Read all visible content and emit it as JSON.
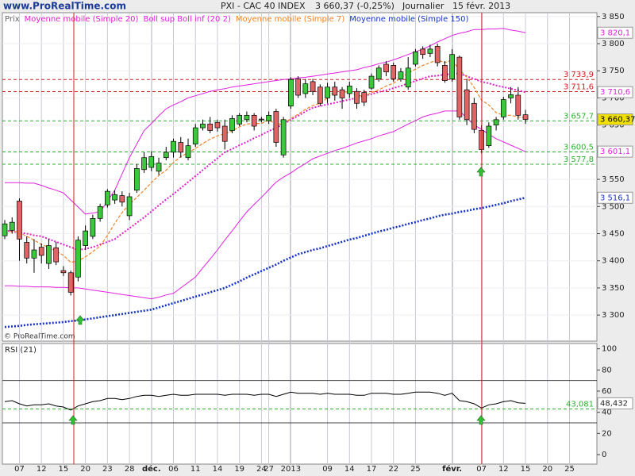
{
  "site": "www.ProRealTime.com",
  "watermark": "© ProRealTime.com",
  "chart_data": [
    {
      "type": "candlestick",
      "title": "PXI - CAC 40 INDEX",
      "last_quote": "3 660,37 (-0,25%)",
      "period": "Journalier",
      "date": "15 févr. 2013",
      "categories": [
        null,
        null,
        "07",
        null,
        null,
        "12",
        null,
        null,
        "15",
        null,
        null,
        "20",
        null,
        null,
        "23",
        null,
        null,
        "28",
        null,
        null,
        "déc.",
        null,
        null,
        "06",
        null,
        null,
        "11",
        null,
        null,
        "14",
        null,
        null,
        "19",
        null,
        null,
        "24",
        "27",
        null,
        null,
        "2013",
        null,
        null,
        null,
        null,
        "09",
        null,
        null,
        "14",
        null,
        null,
        "17",
        null,
        null,
        "22",
        null,
        null,
        "25",
        null,
        null,
        null,
        null,
        "févr.",
        null,
        null,
        null,
        "07",
        null,
        null,
        "12",
        null,
        null,
        "15",
        null,
        null,
        "20",
        null,
        null,
        "25"
      ],
      "series": [
        {
          "name": "Prix",
          "type": "candlestick",
          "color": "#666666",
          "up_color": "#3cc83c",
          "down_color": "#e06464",
          "open": [
            3446,
            3456,
            3510,
            3434,
            3405,
            3425,
            3395,
            3424,
            3382,
            3378,
            3370,
            3428,
            3445,
            3478,
            3503,
            3512,
            3520,
            3483,
            3530,
            3568,
            3572,
            3565,
            3590,
            3600,
            3618,
            3590,
            3615,
            3645,
            3652,
            3655,
            3648,
            3640,
            3652,
            3660,
            3668,
            3661,
            3658,
            3675,
            3595,
            3685,
            3735,
            3708,
            3730,
            3720,
            3700,
            3720,
            3715,
            3708,
            3712,
            3710,
            3718,
            3735,
            3762,
            3760,
            3735,
            3720,
            3762,
            3790,
            3782,
            3795,
            3760,
            3735,
            3775,
            3715,
            3690,
            3640,
            3612,
            3650,
            3665,
            3700,
            3705,
            3669,
            null,
            null,
            null,
            null,
            null,
            null
          ],
          "high": [
            3475,
            3480,
            3515,
            3445,
            3440,
            3432,
            3440,
            3435,
            3390,
            3382,
            3445,
            3465,
            3485,
            3505,
            3532,
            3530,
            3528,
            3525,
            3578,
            3600,
            3602,
            3590,
            3610,
            3625,
            3628,
            3625,
            3652,
            3660,
            3665,
            3660,
            3660,
            3668,
            3672,
            3675,
            3672,
            3665,
            3675,
            3680,
            3665,
            3738,
            3740,
            3735,
            3735,
            3725,
            3728,
            3730,
            3720,
            3730,
            3718,
            3715,
            3745,
            3760,
            3768,
            3765,
            3755,
            3775,
            3790,
            3795,
            3798,
            3800,
            3768,
            3790,
            3778,
            3735,
            3700,
            3650,
            3655,
            3665,
            3702,
            3720,
            3720,
            3678,
            null,
            null,
            null,
            null,
            null,
            null
          ],
          "low": [
            3440,
            3450,
            3400,
            3395,
            3378,
            3395,
            3385,
            3392,
            3372,
            3336,
            3362,
            3420,
            3440,
            3472,
            3498,
            3505,
            3500,
            3475,
            3525,
            3562,
            3565,
            3558,
            3585,
            3590,
            3590,
            3585,
            3610,
            3640,
            3635,
            3638,
            3605,
            3635,
            3648,
            3655,
            3640,
            3655,
            3652,
            3610,
            3590,
            3680,
            3700,
            3700,
            3705,
            3685,
            3690,
            3695,
            3680,
            3700,
            3680,
            3685,
            3715,
            3730,
            3740,
            3730,
            3730,
            3715,
            3758,
            3772,
            3775,
            3758,
            3728,
            3730,
            3660,
            3650,
            3635,
            3598,
            3608,
            3640,
            3660,
            3690,
            3660,
            3652,
            null,
            null,
            null,
            null,
            null,
            null
          ],
          "close": [
            3468,
            3471,
            3440,
            3405,
            3420,
            3410,
            3428,
            3398,
            3378,
            3342,
            3438,
            3455,
            3478,
            3500,
            3528,
            3522,
            3508,
            3518,
            3570,
            3590,
            3592,
            3580,
            3600,
            3620,
            3600,
            3612,
            3645,
            3652,
            3640,
            3645,
            3620,
            3662,
            3668,
            3668,
            3648,
            3660,
            3668,
            3618,
            3660,
            3734,
            3705,
            3726,
            3712,
            3690,
            3720,
            3705,
            3700,
            3722,
            3690,
            3692,
            3740,
            3755,
            3748,
            3735,
            3748,
            3755,
            3785,
            3780,
            3790,
            3765,
            3732,
            3780,
            3665,
            3660,
            3642,
            3605,
            3648,
            3660,
            3697,
            3706,
            3668,
            3660.37,
            null,
            null,
            null,
            null,
            null,
            null
          ]
        },
        {
          "name": "Moyenne mobile (Simple 20)",
          "type": "line",
          "color": "#e020c8",
          "line_style": "dotted",
          "values": [
            3456,
            3454,
            3452,
            3450,
            3447,
            3445,
            3440,
            3435,
            3430,
            3425,
            3420,
            3422,
            3425,
            3430,
            3435,
            3440,
            3450,
            3460,
            3470,
            3480,
            3491,
            3502,
            3513,
            3523,
            3534,
            3545,
            3556,
            3567,
            3578,
            3589,
            3600,
            3606,
            3613,
            3619,
            3626,
            3632,
            3639,
            3645,
            3652,
            3660,
            3667,
            3675,
            3682,
            3685,
            3688,
            3691,
            3694,
            3697,
            3700,
            3704,
            3707,
            3711,
            3714,
            3718,
            3722,
            3727,
            3731,
            3736,
            3740,
            3741,
            3743,
            3744,
            3745,
            3740,
            3735,
            3730,
            3727,
            3723,
            3720,
            3717,
            3714,
            3710.6,
            null,
            null,
            null,
            null,
            null,
            null
          ]
        },
        {
          "name": "Boll sup Boll inf (20 2)",
          "type": "band",
          "color": "#e020e0",
          "line_style": "solid",
          "upper": [
            3544,
            3544,
            3544,
            3543,
            3543,
            3539,
            3534,
            3530,
            3525,
            3512,
            3499,
            3486,
            3488,
            3490,
            3510,
            3530,
            3560,
            3590,
            3615,
            3640,
            3653,
            3667,
            3680,
            3687,
            3693,
            3700,
            3704,
            3708,
            3712,
            3715,
            3717,
            3720,
            3722,
            3724,
            3726,
            3728,
            3730,
            3732,
            3734,
            3735,
            3737,
            3738,
            3740,
            3742,
            3744,
            3746,
            3748,
            3750,
            3752,
            3756,
            3759,
            3763,
            3766,
            3770,
            3775,
            3780,
            3785,
            3790,
            3796,
            3803,
            3809,
            3815,
            3819,
            3822,
            3826,
            3826,
            3827,
            3827,
            3828,
            3825,
            3823,
            3820.1,
            null,
            null,
            null,
            null,
            null,
            null
          ],
          "lower": [
            3354,
            3354,
            3353,
            3353,
            3352,
            3352,
            3352,
            3351,
            3351,
            3350,
            3350,
            3348,
            3346,
            3344,
            3342,
            3340,
            3338,
            3336,
            3334,
            3332,
            3330,
            3333,
            3337,
            3340,
            3350,
            3360,
            3370,
            3387,
            3403,
            3420,
            3438,
            3455,
            3473,
            3490,
            3504,
            3517,
            3531,
            3545,
            3554,
            3562,
            3571,
            3579,
            3588,
            3593,
            3598,
            3603,
            3607,
            3612,
            3617,
            3621,
            3625,
            3630,
            3634,
            3638,
            3645,
            3652,
            3658,
            3665,
            3669,
            3672,
            3676,
            3676,
            3676,
            3663,
            3650,
            3642,
            3633,
            3625,
            3619,
            3613,
            3607,
            3601.1,
            null,
            null,
            null,
            null,
            null,
            null
          ]
        },
        {
          "name": "Moyenne mobile (Simple 7)",
          "type": "line",
          "color": "#f08428",
          "line_style": "dashed",
          "values": [
            3450,
            3455,
            3452,
            3445,
            3438,
            3430,
            3425,
            3418,
            3410,
            3397,
            3400,
            3407,
            3417,
            3427,
            3447,
            3469,
            3489,
            3504,
            3517,
            3530,
            3544,
            3557,
            3567,
            3581,
            3592,
            3599,
            3607,
            3616,
            3624,
            3630,
            3634,
            3639,
            3647,
            3652,
            3653,
            3653,
            3659,
            3652,
            3652,
            3662,
            3670,
            3679,
            3686,
            3690,
            3700,
            3713,
            3711,
            3711,
            3705,
            3703,
            3710,
            3715,
            3722,
            3727,
            3737,
            3746,
            3753,
            3760,
            3765,
            3770,
            3765,
            3770,
            3752,
            3738,
            3719,
            3696,
            3687,
            3673,
            3668,
            3668,
            3665,
            3663,
            null,
            null,
            null,
            null,
            null,
            null
          ]
        },
        {
          "name": "Moyenne mobile (Simple 150)",
          "type": "line",
          "color": "#1432c8",
          "line_style": "dotted-thick",
          "values": [
            3278,
            3279,
            3280,
            3282,
            3283,
            3284,
            3285,
            3286,
            3287,
            3289,
            3290,
            3292,
            3294,
            3296,
            3298,
            3300,
            3302,
            3304,
            3306,
            3308,
            3310,
            3314,
            3318,
            3322,
            3326,
            3330,
            3334,
            3338,
            3342,
            3346,
            3350,
            3356,
            3362,
            3369,
            3375,
            3381,
            3387,
            3393,
            3400,
            3406,
            3412,
            3416,
            3420,
            3423,
            3427,
            3431,
            3435,
            3439,
            3442,
            3446,
            3450,
            3454,
            3457,
            3461,
            3464,
            3468,
            3471,
            3475,
            3478,
            3482,
            3485,
            3487,
            3490,
            3492,
            3495,
            3497,
            3500,
            3503,
            3506,
            3510,
            3513,
            3516.1,
            null,
            null,
            null,
            null,
            null,
            null
          ]
        }
      ],
      "ylim": [
        3252,
        3857
      ],
      "yticks": [
        {
          "value": 3300,
          "label": "3 300"
        },
        {
          "value": 3350,
          "label": "3 350"
        },
        {
          "value": 3400,
          "label": "3 400"
        },
        {
          "value": 3450,
          "label": "3 450"
        },
        {
          "value": 3500,
          "label": "3 500"
        },
        {
          "value": 3550,
          "label": "3 550"
        },
        {
          "value": 3600,
          "label": "3 600"
        },
        {
          "value": 3650,
          "label": "3 650"
        },
        {
          "value": 3700,
          "label": "3 700"
        },
        {
          "value": 3750,
          "label": "3 750"
        },
        {
          "value": 3800,
          "label": "3 800"
        },
        {
          "value": 3850,
          "label": "3 850"
        }
      ],
      "hlines": [
        {
          "value": 3733.9,
          "label": "3 733,9",
          "color": "#d02020"
        },
        {
          "value": 3711.6,
          "label": "3 711,6",
          "color": "#d02020"
        },
        {
          "value": 3657.7,
          "label": "3 657,7",
          "color": "#30b030"
        },
        {
          "value": 3600.5,
          "label": "3 600,5",
          "color": "#30b030"
        },
        {
          "value": 3577.8,
          "label": "3 577,8",
          "color": "#30b030"
        }
      ],
      "price_labels": [
        {
          "value": 3820.1,
          "label": "3 820,1",
          "color": "#e020e0"
        },
        {
          "value": 3710.6,
          "label": "3 710,6",
          "color": "#e020e0"
        },
        {
          "value": 3660.37,
          "label": "3 660,37",
          "color": "#000000",
          "background": "#f0e000"
        },
        {
          "value": 3601.1,
          "label": "3 601,1",
          "color": "#e020e0"
        },
        {
          "value": 3516.1,
          "label": "3 516,1",
          "color": "#1432c8"
        }
      ],
      "grid": true
    },
    {
      "type": "line",
      "title": "RSI (21)",
      "color": "#000000",
      "values": [
        50,
        51,
        48,
        46,
        47,
        47,
        48,
        46,
        45,
        42,
        46,
        48,
        50,
        51,
        53,
        53,
        52,
        53,
        55,
        56,
        56,
        55,
        56,
        57,
        56,
        56,
        57,
        57,
        57,
        57,
        56,
        57,
        57,
        57,
        56,
        57,
        57,
        55,
        57,
        59,
        58,
        58,
        58,
        57,
        58,
        57,
        57,
        57,
        56,
        56,
        58,
        58,
        58,
        57,
        57,
        58,
        59,
        59,
        59,
        58,
        56,
        58,
        51,
        50,
        48,
        44,
        47,
        48,
        50,
        51,
        49,
        48.432,
        null,
        null,
        null,
        null,
        null,
        null
      ],
      "ylim": [
        -9,
        105
      ],
      "yticks": [
        0,
        20,
        40,
        60,
        80,
        100
      ],
      "levels": [
        70,
        30
      ],
      "hline": {
        "value": 43.081,
        "label": "43,081",
        "color": "#30b030"
      },
      "current": {
        "value": 48.432,
        "label": "48,432"
      }
    }
  ]
}
